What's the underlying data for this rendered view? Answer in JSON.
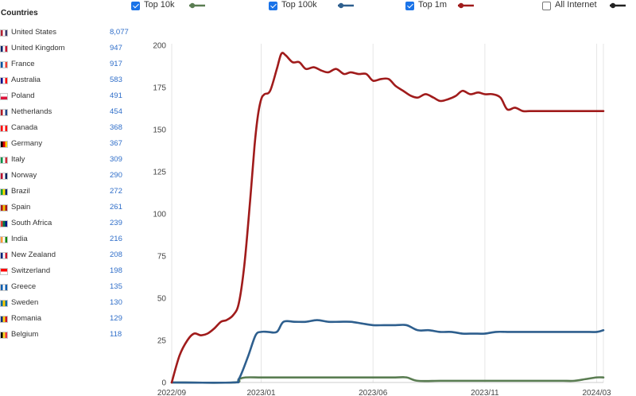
{
  "countries_panel": {
    "title": "Countries",
    "items": [
      {
        "name": "United States",
        "count": "8,077",
        "flag": "us-flag-icon",
        "colors": [
          "#b22234",
          "#ffffff",
          "#3c3b6e"
        ]
      },
      {
        "name": "United Kingdom",
        "count": "947",
        "flag": "uk-flag-icon",
        "colors": [
          "#012169",
          "#ffffff",
          "#c8102e"
        ]
      },
      {
        "name": "France",
        "count": "917",
        "flag": "france-flag-icon",
        "colors": [
          "#0055a4",
          "#ffffff",
          "#ef4135"
        ]
      },
      {
        "name": "Australia",
        "count": "583",
        "flag": "australia-flag-icon",
        "colors": [
          "#00008b",
          "#ffffff",
          "#ff0000"
        ]
      },
      {
        "name": "Poland",
        "count": "491",
        "flag": "poland-flag-icon",
        "colors": [
          "#ffffff",
          "#dc143c"
        ]
      },
      {
        "name": "Netherlands",
        "count": "454",
        "flag": "netherlands-flag-icon",
        "colors": [
          "#ae1c28",
          "#ffffff",
          "#21468b"
        ]
      },
      {
        "name": "Canada",
        "count": "368",
        "flag": "canada-flag-icon",
        "colors": [
          "#ff0000",
          "#ffffff",
          "#ff0000"
        ]
      },
      {
        "name": "Germany",
        "count": "367",
        "flag": "germany-flag-icon",
        "colors": [
          "#000000",
          "#dd0000",
          "#ffce00"
        ]
      },
      {
        "name": "Italy",
        "count": "309",
        "flag": "italy-flag-icon",
        "colors": [
          "#009246",
          "#ffffff",
          "#ce2b37"
        ]
      },
      {
        "name": "Norway",
        "count": "290",
        "flag": "norway-flag-icon",
        "colors": [
          "#ba0c2f",
          "#ffffff",
          "#00205b"
        ]
      },
      {
        "name": "Brazil",
        "count": "272",
        "flag": "brazil-flag-icon",
        "colors": [
          "#009c3b",
          "#ffdf00",
          "#002776"
        ]
      },
      {
        "name": "Spain",
        "count": "261",
        "flag": "spain-flag-icon",
        "colors": [
          "#aa151b",
          "#f1bf00",
          "#aa151b"
        ]
      },
      {
        "name": "South Africa",
        "count": "239",
        "flag": "south-africa-flag-icon",
        "colors": [
          "#e03c31",
          "#007749",
          "#001489"
        ]
      },
      {
        "name": "India",
        "count": "216",
        "flag": "india-flag-icon",
        "colors": [
          "#ff9933",
          "#ffffff",
          "#138808"
        ]
      },
      {
        "name": "New Zealand",
        "count": "208",
        "flag": "new-zealand-flag-icon",
        "colors": [
          "#00247d",
          "#ffffff",
          "#cc142b"
        ]
      },
      {
        "name": "Switzerland",
        "count": "198",
        "flag": "switzerland-flag-icon",
        "colors": [
          "#ff0000",
          "#ffffff"
        ]
      },
      {
        "name": "Greece",
        "count": "135",
        "flag": "greece-flag-icon",
        "colors": [
          "#0d5eaf",
          "#ffffff",
          "#0d5eaf"
        ]
      },
      {
        "name": "Sweden",
        "count": "130",
        "flag": "sweden-flag-icon",
        "colors": [
          "#006aa7",
          "#fecc00",
          "#006aa7"
        ]
      },
      {
        "name": "Romania",
        "count": "129",
        "flag": "romania-flag-icon",
        "colors": [
          "#002b7f",
          "#fcd116",
          "#ce1126"
        ]
      },
      {
        "name": "Belgium",
        "count": "118",
        "flag": "belgium-flag-icon",
        "colors": [
          "#000000",
          "#fdda24",
          "#ef3340"
        ]
      }
    ]
  },
  "legend": [
    {
      "label": "Top 10k",
      "checked": true,
      "color": "#5a7d52",
      "name": "top-10k"
    },
    {
      "label": "Top 100k",
      "checked": true,
      "color": "#2e5f8e",
      "name": "top-100k"
    },
    {
      "label": "Top 1m",
      "checked": true,
      "color": "#a01b1b",
      "name": "top-1m"
    },
    {
      "label": "All Internet",
      "checked": false,
      "color": "#222222",
      "name": "all-internet"
    }
  ],
  "chart_data": {
    "type": "line",
    "xlabel": "",
    "ylabel": "",
    "ylim": [
      0,
      200
    ],
    "yticks": [
      0,
      25,
      50,
      75,
      100,
      125,
      150,
      175,
      200
    ],
    "x_ticks": [
      "2022/09",
      "2023/01",
      "2023/06",
      "2023/11",
      "2024/03"
    ],
    "x_tick_positions": [
      0,
      4,
      9,
      14,
      19
    ],
    "xlim": [
      0,
      19.3
    ],
    "grid": "vertical",
    "series": [
      {
        "name": "Top 1m",
        "color": "#a01b1b",
        "x": [
          0,
          0.35,
          0.7,
          1.0,
          1.3,
          1.6,
          1.9,
          2.2,
          2.45,
          2.75,
          3.0,
          3.25,
          3.5,
          3.7,
          3.85,
          4.0,
          4.15,
          4.4,
          4.7,
          4.9,
          5.1,
          5.4,
          5.7,
          6.0,
          6.35,
          6.7,
          7.0,
          7.35,
          7.7,
          8.0,
          8.35,
          8.7,
          9.0,
          9.35,
          9.7,
          10.0,
          10.35,
          10.7,
          11.0,
          11.35,
          11.7,
          12.0,
          12.35,
          12.7,
          13.0,
          13.35,
          13.7,
          14.0,
          14.35,
          14.7,
          15.0,
          15.35,
          15.7,
          16.0,
          16.35,
          16.7,
          17.0,
          17.35,
          17.7,
          18.0,
          18.35,
          18.7,
          19.0,
          19.3
        ],
        "values": [
          0,
          16,
          25,
          29,
          28,
          29,
          32,
          36,
          37,
          40,
          47,
          70,
          107,
          140,
          158,
          168,
          171,
          173,
          186,
          195,
          194,
          190,
          190,
          186,
          187,
          185,
          184,
          186,
          183,
          184,
          183,
          183,
          179,
          180,
          180,
          176,
          173,
          170,
          169,
          171,
          169,
          167,
          168,
          170,
          173,
          171,
          172,
          171,
          171,
          169,
          162,
          163,
          161,
          161,
          161,
          161,
          161,
          161,
          161,
          161,
          161,
          161,
          161,
          161
        ]
      },
      {
        "name": "Top 100k",
        "color": "#2e5f8e",
        "x": [
          0,
          2.7,
          3.0,
          3.4,
          3.75,
          4.0,
          4.3,
          4.7,
          5.0,
          5.5,
          6.0,
          6.5,
          7.0,
          7.5,
          8.0,
          8.5,
          9.0,
          9.5,
          10.0,
          10.5,
          11.0,
          11.5,
          12.0,
          12.5,
          13.0,
          13.5,
          14.0,
          14.5,
          15.0,
          15.5,
          16.0,
          16.5,
          17.0,
          17.5,
          18.0,
          18.5,
          19.0,
          19.3
        ],
        "values": [
          0,
          0,
          2,
          15,
          28,
          30,
          30,
          30,
          36,
          36,
          36,
          37,
          36,
          36,
          36,
          35,
          34,
          34,
          34,
          34,
          31,
          31,
          30,
          30,
          29,
          29,
          29,
          30,
          30,
          30,
          30,
          30,
          30,
          30,
          30,
          30,
          30,
          31
        ]
      },
      {
        "name": "Top 10k",
        "color": "#5a7d52",
        "x": [
          0,
          2.75,
          3.0,
          3.3,
          4.0,
          5.0,
          6.0,
          7.0,
          8.0,
          9.0,
          10.0,
          10.5,
          11.0,
          12.0,
          13.0,
          14.0,
          14.5,
          15.0,
          16.0,
          16.5,
          17.0,
          17.5,
          18.0,
          18.5,
          19.0,
          19.3
        ],
        "values": [
          0,
          0,
          2,
          3,
          3,
          3,
          3,
          3,
          3,
          3,
          3,
          3,
          1,
          1,
          1,
          1,
          1,
          1,
          1,
          1,
          1,
          1,
          1,
          2,
          3,
          3
        ]
      }
    ]
  }
}
